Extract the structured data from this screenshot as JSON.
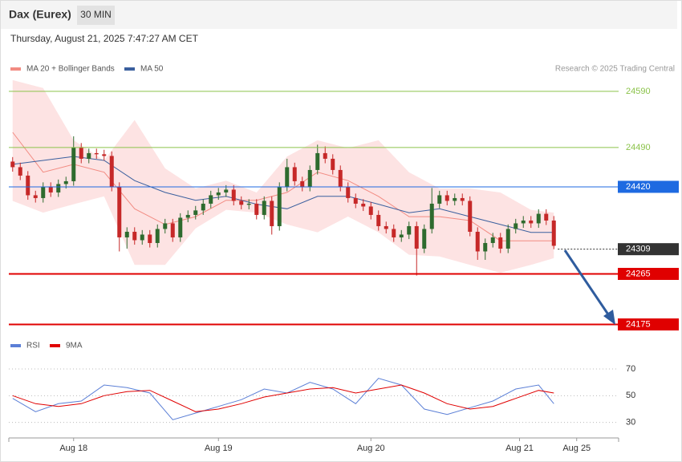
{
  "chart_data": {
    "type": "candlestick",
    "title": "Dax (Eurex)",
    "timeframe": "30 MIN",
    "subtitle": "Thursday, August 21, 2025 7:47:27 AM CET",
    "source": "Research © 2025 Trading Central",
    "up_color": "#2e6b2e",
    "down_color": "#c62828",
    "xlim": [
      -0.5,
      79.5
    ],
    "xticks": [
      {
        "value": 8,
        "label": "Aug 18"
      },
      {
        "value": 27,
        "label": "Aug 19"
      },
      {
        "value": 47,
        "label": "Aug 20"
      },
      {
        "value": 66.5,
        "label": "Aug 21"
      },
      {
        "value": 74,
        "label": "Aug 25"
      }
    ],
    "ylim": [
      24160,
      24617
    ],
    "ohlc": [
      [
        24465,
        24473,
        24447,
        24455
      ],
      [
        24455,
        24463,
        24432,
        24440
      ],
      [
        24440,
        24448,
        24397,
        24405
      ],
      [
        24405,
        24413,
        24392,
        24400
      ],
      [
        24400,
        24428,
        24392,
        24420
      ],
      [
        24420,
        24428,
        24402,
        24410
      ],
      [
        24410,
        24433,
        24402,
        24425
      ],
      [
        24425,
        24438,
        24417,
        24430
      ],
      [
        24430,
        24510,
        24422,
        24490
      ],
      [
        24490,
        24498,
        24462,
        24470
      ],
      [
        24470,
        24488,
        24462,
        24480
      ],
      [
        24480,
        24488,
        24470,
        24478
      ],
      [
        24478,
        24486,
        24467,
        24475
      ],
      [
        24475,
        24483,
        24412,
        24420
      ],
      [
        24420,
        24428,
        24305,
        24330
      ],
      [
        24330,
        24348,
        24310,
        24340
      ],
      [
        24340,
        24348,
        24317,
        24325
      ],
      [
        24325,
        24343,
        24317,
        24335
      ],
      [
        24335,
        24343,
        24312,
        24320
      ],
      [
        24320,
        24353,
        24312,
        24345
      ],
      [
        24345,
        24363,
        24337,
        24355
      ],
      [
        24355,
        24363,
        24322,
        24330
      ],
      [
        24330,
        24373,
        24322,
        24365
      ],
      [
        24365,
        24378,
        24357,
        24370
      ],
      [
        24370,
        24386,
        24362,
        24378
      ],
      [
        24378,
        24398,
        24370,
        24390
      ],
      [
        24390,
        24413,
        24382,
        24405
      ],
      [
        24405,
        24418,
        24397,
        24410
      ],
      [
        24410,
        24423,
        24402,
        24415
      ],
      [
        24415,
        24423,
        24387,
        24395
      ],
      [
        24395,
        24403,
        24380,
        24388
      ],
      [
        24388,
        24398,
        24380,
        24390
      ],
      [
        24390,
        24398,
        24362,
        24370
      ],
      [
        24370,
        24403,
        24362,
        24395
      ],
      [
        24395,
        24403,
        24335,
        24350
      ],
      [
        24350,
        24428,
        24342,
        24420
      ],
      [
        24420,
        24470,
        24412,
        24455
      ],
      [
        24455,
        24463,
        24422,
        24430
      ],
      [
        24430,
        24438,
        24412,
        24420
      ],
      [
        24420,
        24458,
        24412,
        24450
      ],
      [
        24450,
        24495,
        24442,
        24480
      ],
      [
        24480,
        24492,
        24462,
        24470
      ],
      [
        24470,
        24478,
        24442,
        24450
      ],
      [
        24450,
        24458,
        24412,
        24420
      ],
      [
        24420,
        24428,
        24392,
        24400
      ],
      [
        24400,
        24408,
        24382,
        24390
      ],
      [
        24390,
        24398,
        24377,
        24385
      ],
      [
        24385,
        24393,
        24362,
        24370
      ],
      [
        24370,
        24378,
        24342,
        24350
      ],
      [
        24350,
        24358,
        24337,
        24345
      ],
      [
        24345,
        24353,
        24322,
        24330
      ],
      [
        24330,
        24343,
        24322,
        24335
      ],
      [
        24335,
        24358,
        24327,
        24350
      ],
      [
        24350,
        24358,
        24262,
        24310
      ],
      [
        24310,
        24353,
        24302,
        24345
      ],
      [
        24345,
        24418,
        24337,
        24390
      ],
      [
        24390,
        24413,
        24382,
        24405
      ],
      [
        24405,
        24413,
        24387,
        24395
      ],
      [
        24395,
        24408,
        24387,
        24400
      ],
      [
        24400,
        24408,
        24387,
        24395
      ],
      [
        24395,
        24403,
        24332,
        24340
      ],
      [
        24340,
        24348,
        24290,
        24305
      ],
      [
        24305,
        24328,
        24290,
        24320
      ],
      [
        24320,
        24338,
        24312,
        24330
      ],
      [
        24330,
        24338,
        24302,
        24310
      ],
      [
        24310,
        24353,
        24302,
        24345
      ],
      [
        24345,
        24363,
        24337,
        24355
      ],
      [
        24355,
        24368,
        24347,
        24360
      ],
      [
        24360,
        24368,
        24347,
        24355
      ],
      [
        24355,
        24380,
        24347,
        24372
      ],
      [
        24372,
        24380,
        24352,
        24360
      ],
      [
        24360,
        24368,
        24309,
        24315
      ]
    ],
    "overlays": [
      {
        "name": "MA 20 + Bollinger Bands",
        "color": "#f28b82",
        "band_color": "#fde3e3",
        "x": [
          0,
          4,
          8,
          12,
          16,
          20,
          24,
          28,
          32,
          36,
          40,
          44,
          48,
          52,
          56,
          60,
          64,
          68,
          71
        ],
        "values": [
          24517,
          24446,
          24460,
          24446,
          24381,
          24353,
          24367,
          24396,
          24396,
          24410,
          24446,
          24431,
          24403,
          24367,
          24367,
          24360,
          24324,
          24324,
          24324
        ],
        "upper": [
          24610,
          24596,
          24503,
          24467,
          24539,
          24453,
          24417,
          24431,
          24410,
          24474,
          24503,
          24489,
          24503,
          24446,
          24417,
          24417,
          24410,
          24379,
          24374
        ],
        "lower": [
          24395,
          24374,
          24389,
          24403,
          24281,
          24281,
          24346,
          24379,
          24374,
          24353,
          24339,
          24367,
          24339,
          24299,
          24296,
          24281,
          24267,
          24281,
          24293
        ]
      },
      {
        "name": "MA 50",
        "color": "#3a5f9e",
        "x": [
          0,
          4,
          8,
          12,
          16,
          20,
          24,
          28,
          32,
          36,
          40,
          44,
          48,
          52,
          56,
          60,
          64,
          68,
          71
        ],
        "values": [
          24460,
          24467,
          24474,
          24467,
          24431,
          24410,
          24396,
          24403,
          24389,
          24381,
          24403,
          24403,
          24389,
          24374,
          24381,
          24367,
          24353,
          24339,
          24339
        ]
      }
    ],
    "levels": [
      {
        "value": 24590,
        "color": "#8bc34a",
        "line": "solid",
        "label": "text"
      },
      {
        "value": 24490,
        "color": "#8bc34a",
        "line": "solid",
        "label": "text"
      },
      {
        "value": 24420,
        "color": "#1e6ae1",
        "line": "solid",
        "label": "box"
      },
      {
        "value": 24309,
        "color": "#333333",
        "line": "dotted",
        "label": "box"
      },
      {
        "value": 24265,
        "color": "#e00000",
        "line": "thick",
        "label": "box"
      },
      {
        "value": 24175,
        "color": "#e00000",
        "line": "thick",
        "label": "box"
      }
    ],
    "indicator": {
      "type": "line",
      "ylim": [
        22,
        79
      ],
      "yticks": [
        70,
        50,
        30
      ],
      "series": [
        {
          "name": "RSI",
          "color": "#5b7fd6",
          "x": [
            0,
            3,
            6,
            9,
            12,
            15,
            18,
            21,
            24,
            27,
            30,
            33,
            36,
            39,
            42,
            45,
            48,
            51,
            54,
            57,
            60,
            63,
            66,
            69,
            71
          ],
          "values": [
            48,
            38,
            44,
            46,
            58,
            56,
            52,
            32,
            37,
            42,
            47,
            55,
            52,
            60,
            55,
            44,
            63,
            58,
            40,
            36,
            41,
            46,
            55,
            58,
            44
          ]
        },
        {
          "name": "9MA",
          "color": "#e00000",
          "x": [
            0,
            3,
            6,
            9,
            12,
            15,
            18,
            21,
            24,
            27,
            30,
            33,
            36,
            39,
            42,
            45,
            48,
            51,
            54,
            57,
            60,
            63,
            66,
            69,
            71
          ],
          "values": [
            50,
            44,
            42,
            44,
            50,
            53,
            54,
            46,
            38,
            40,
            44,
            49,
            52,
            55,
            56,
            52,
            55,
            58,
            52,
            44,
            40,
            42,
            48,
            54,
            52
          ]
        }
      ]
    }
  }
}
